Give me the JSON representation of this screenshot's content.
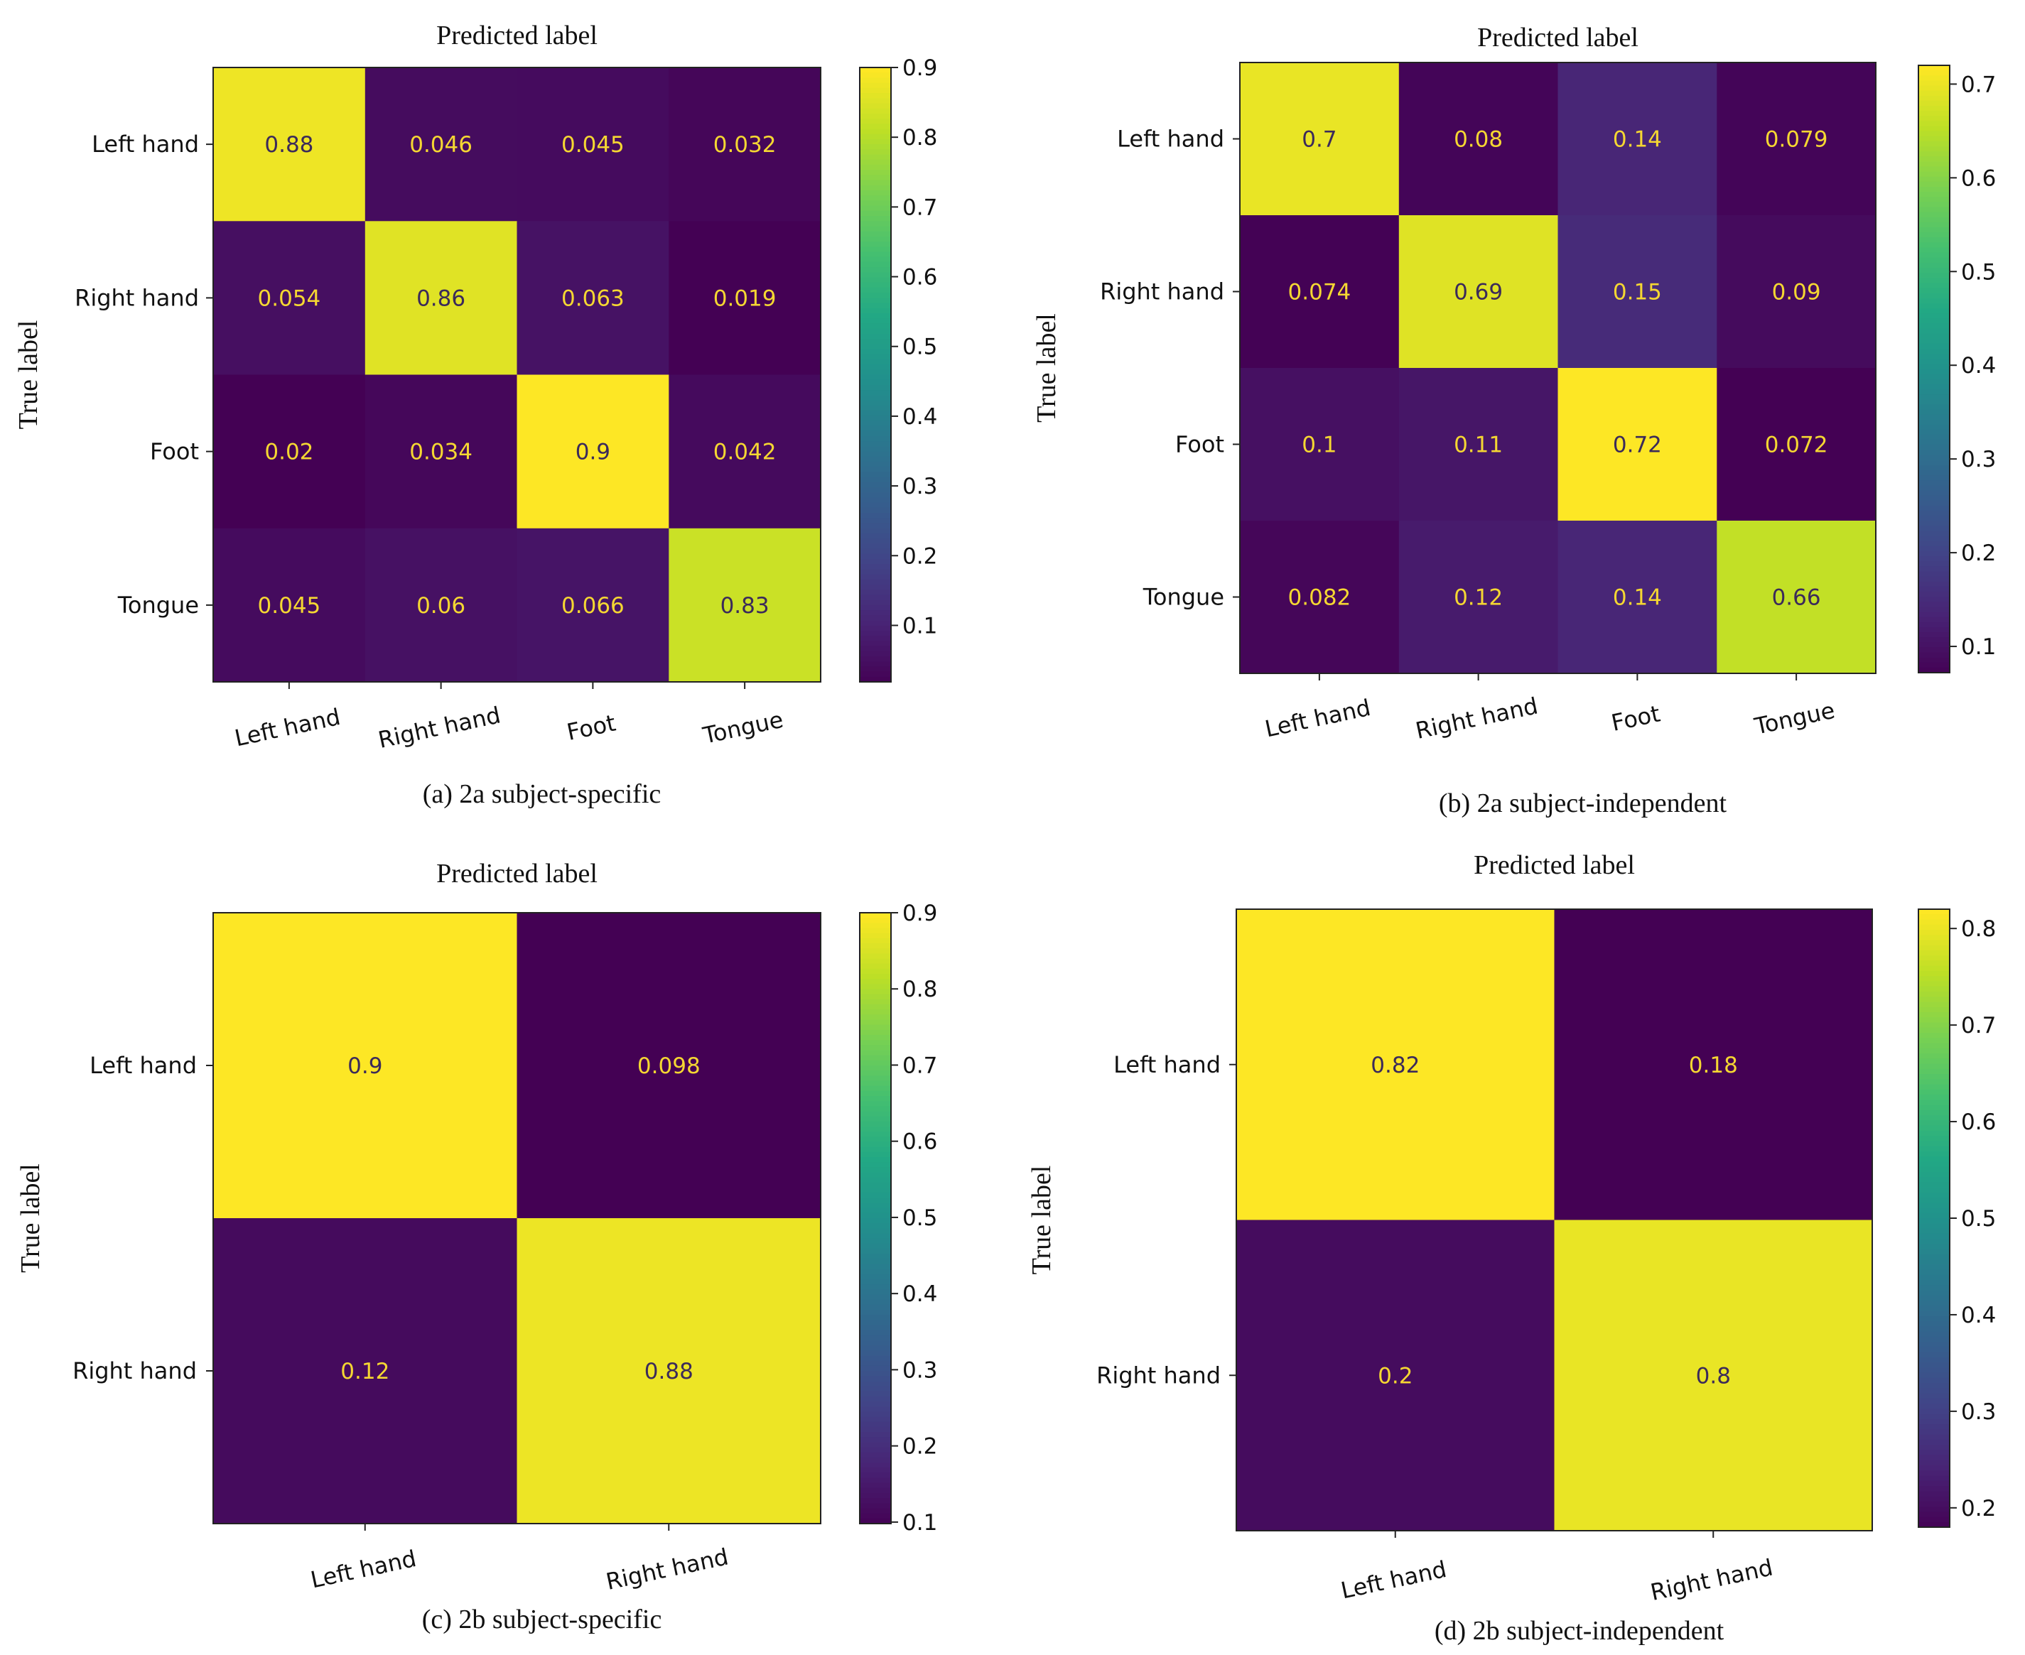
{
  "chart_data": [
    {
      "type": "heatmap",
      "title": "Predicted label",
      "ylabel": "True label",
      "caption": "(a) 2a subject-specific",
      "x_categories": [
        "Left hand",
        "Right hand",
        "Foot",
        "Tongue"
      ],
      "y_categories": [
        "Left hand",
        "Right hand",
        "Foot",
        "Tongue"
      ],
      "values": [
        [
          0.88,
          0.046,
          0.045,
          0.032
        ],
        [
          0.054,
          0.86,
          0.063,
          0.019
        ],
        [
          0.02,
          0.034,
          0.9,
          0.042
        ],
        [
          0.045,
          0.06,
          0.066,
          0.83
        ]
      ],
      "value_labels": [
        [
          "0.88",
          "0.046",
          "0.045",
          "0.032"
        ],
        [
          "0.054",
          "0.86",
          "0.063",
          "0.019"
        ],
        [
          "0.02",
          "0.034",
          "0.9",
          "0.042"
        ],
        [
          "0.045",
          "0.06",
          "0.066",
          "0.83"
        ]
      ],
      "colorbar": {
        "range": [
          0.019,
          0.9
        ],
        "ticks": [
          0.1,
          0.2,
          0.3,
          0.4,
          0.5,
          0.6,
          0.7,
          0.8,
          0.9
        ],
        "tick_labels": [
          "0.1",
          "0.2",
          "0.3",
          "0.4",
          "0.5",
          "0.6",
          "0.7",
          "0.8",
          "0.9"
        ]
      }
    },
    {
      "type": "heatmap",
      "title": "Predicted label",
      "ylabel": "True label",
      "caption": "(b) 2a subject-independent",
      "x_categories": [
        "Left hand",
        "Right hand",
        "Foot",
        "Tongue"
      ],
      "y_categories": [
        "Left hand",
        "Right hand",
        "Foot",
        "Tongue"
      ],
      "values": [
        [
          0.7,
          0.08,
          0.14,
          0.079
        ],
        [
          0.074,
          0.69,
          0.15,
          0.09
        ],
        [
          0.1,
          0.11,
          0.72,
          0.072
        ],
        [
          0.082,
          0.12,
          0.14,
          0.66
        ]
      ],
      "value_labels": [
        [
          "0.7",
          "0.08",
          "0.14",
          "0.079"
        ],
        [
          "0.074",
          "0.69",
          "0.15",
          "0.09"
        ],
        [
          "0.1",
          "0.11",
          "0.72",
          "0.072"
        ],
        [
          "0.082",
          "0.12",
          "0.14",
          "0.66"
        ]
      ],
      "colorbar": {
        "range": [
          0.072,
          0.72
        ],
        "ticks": [
          0.1,
          0.2,
          0.3,
          0.4,
          0.5,
          0.6,
          0.7
        ],
        "tick_labels": [
          "0.1",
          "0.2",
          "0.3",
          "0.4",
          "0.5",
          "0.6",
          "0.7"
        ]
      }
    },
    {
      "type": "heatmap",
      "title": "Predicted label",
      "ylabel": "True label",
      "caption": "(c) 2b subject-specific",
      "x_categories": [
        "Left hand",
        "Right hand"
      ],
      "y_categories": [
        "Left hand",
        "Right hand"
      ],
      "values": [
        [
          0.9,
          0.098
        ],
        [
          0.12,
          0.88
        ]
      ],
      "value_labels": [
        [
          "0.9",
          "0.098"
        ],
        [
          "0.12",
          "0.88"
        ]
      ],
      "colorbar": {
        "range": [
          0.098,
          0.9
        ],
        "ticks": [
          0.1,
          0.2,
          0.3,
          0.4,
          0.5,
          0.6,
          0.7,
          0.8,
          0.9
        ],
        "tick_labels": [
          "0.1",
          "0.2",
          "0.3",
          "0.4",
          "0.5",
          "0.6",
          "0.7",
          "0.8",
          "0.9"
        ]
      }
    },
    {
      "type": "heatmap",
      "title": "Predicted label",
      "ylabel": "True label",
      "caption": "(d) 2b subject-independent",
      "x_categories": [
        "Left hand",
        "Right hand"
      ],
      "y_categories": [
        "Left hand",
        "Right hand"
      ],
      "values": [
        [
          0.82,
          0.18
        ],
        [
          0.2,
          0.8
        ]
      ],
      "value_labels": [
        [
          "0.82",
          "0.18"
        ],
        [
          "0.2",
          "0.8"
        ]
      ],
      "colorbar": {
        "range": [
          0.18,
          0.82
        ],
        "ticks": [
          0.2,
          0.3,
          0.4,
          0.5,
          0.6,
          0.7,
          0.8
        ],
        "tick_labels": [
          "0.2",
          "0.3",
          "0.4",
          "0.5",
          "0.6",
          "0.7",
          "0.8"
        ]
      }
    }
  ]
}
